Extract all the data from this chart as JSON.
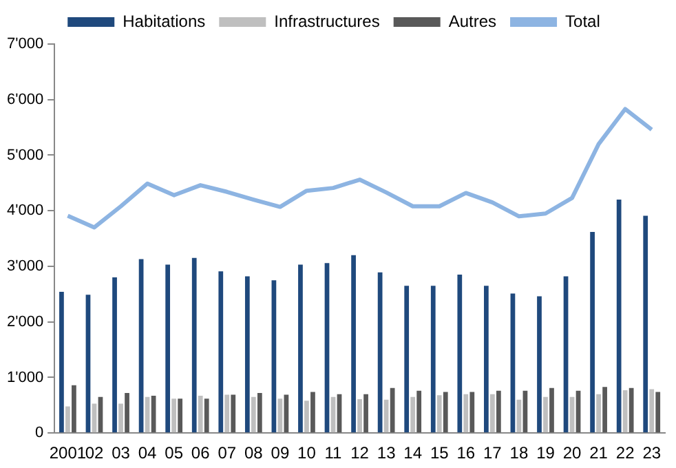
{
  "chart_data": {
    "type": "bar",
    "categories": [
      "2001",
      "02",
      "03",
      "04",
      "05",
      "06",
      "07",
      "08",
      "09",
      "10",
      "11",
      "12",
      "13",
      "14",
      "15",
      "16",
      "17",
      "18",
      "19",
      "20",
      "21",
      "22",
      "23"
    ],
    "series": [
      {
        "name": "Habitations",
        "color": "#1f497d",
        "values": [
          2540,
          2490,
          2800,
          3130,
          3030,
          3150,
          2910,
          2820,
          2750,
          3030,
          3060,
          3200,
          2890,
          2650,
          2650,
          2850,
          2650,
          2510,
          2460,
          2820,
          3620,
          4200,
          3910
        ]
      },
      {
        "name": "Infrastructures",
        "color": "#bfbfbf",
        "values": [
          480,
          530,
          530,
          650,
          620,
          670,
          690,
          650,
          620,
          580,
          650,
          610,
          600,
          650,
          680,
          700,
          700,
          600,
          650,
          650,
          700,
          770,
          790
        ]
      },
      {
        "name": "Autres",
        "color": "#595959",
        "values": [
          860,
          650,
          720,
          670,
          620,
          620,
          690,
          720,
          690,
          740,
          700,
          700,
          810,
          760,
          740,
          740,
          760,
          760,
          810,
          760,
          830,
          810,
          740
        ]
      },
      {
        "name": "Total",
        "type": "line",
        "color": "#8db4e2",
        "values": [
          3910,
          3700,
          4080,
          4490,
          4280,
          4460,
          4340,
          4200,
          4070,
          4360,
          4410,
          4560,
          4330,
          4080,
          4080,
          4320,
          4150,
          3900,
          3950,
          4230,
          5200,
          5830,
          5460
        ]
      }
    ],
    "ylim": [
      0,
      7000
    ],
    "yticks": [
      0,
      {
        "value": 1000,
        "label": "1'000"
      },
      {
        "value": 2000,
        "label": "2'000"
      },
      {
        "value": 3000,
        "label": "3'000"
      },
      {
        "value": 4000,
        "label": "4'000"
      },
      {
        "value": 5000,
        "label": "5'000"
      },
      {
        "value": 6000,
        "label": "6'000"
      },
      {
        "value": 7000,
        "label": "7'000"
      }
    ],
    "grid": false,
    "legend": "top",
    "marker": "none"
  }
}
